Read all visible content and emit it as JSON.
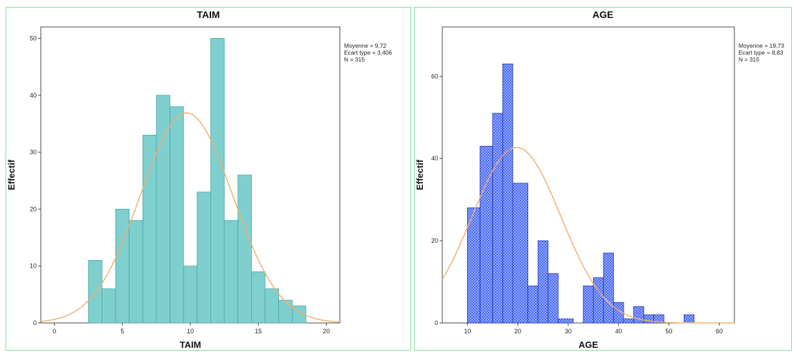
{
  "chart_data": [
    {
      "type": "bar",
      "title": "TAIM",
      "xlabel": "TAIM",
      "ylabel": "Effectif",
      "stats": [
        "Moyenne = 9,72",
        "Ecart type = 3,406",
        "N = 315"
      ],
      "xlim": [
        -1,
        21
      ],
      "ylim": [
        0,
        52
      ],
      "xticks": [
        0,
        5,
        10,
        15,
        20
      ],
      "yticks": [
        0,
        10,
        20,
        30,
        40,
        50
      ],
      "bin_width": 1,
      "bins": [
        {
          "x": 3,
          "y": 11
        },
        {
          "x": 4,
          "y": 6
        },
        {
          "x": 5,
          "y": 20
        },
        {
          "x": 6,
          "y": 18
        },
        {
          "x": 7,
          "y": 33
        },
        {
          "x": 8,
          "y": 40
        },
        {
          "x": 9,
          "y": 38
        },
        {
          "x": 10,
          "y": 10
        },
        {
          "x": 11,
          "y": 23
        },
        {
          "x": 12,
          "y": 50
        },
        {
          "x": 13,
          "y": 18
        },
        {
          "x": 14,
          "y": 26
        },
        {
          "x": 15,
          "y": 9
        },
        {
          "x": 16,
          "y": 6
        },
        {
          "x": 17,
          "y": 4
        },
        {
          "x": 18,
          "y": 3
        }
      ],
      "normal_curve": {
        "mean": 9.72,
        "sd": 3.406,
        "n": 315
      },
      "bar_color": "#7fcfcf",
      "bar_stroke": "#4aa5a5",
      "curve_color": "#f0b070"
    },
    {
      "type": "bar",
      "title": "AGE",
      "xlabel": "AGE",
      "ylabel": "Effectif",
      "stats": [
        "Moyenne = 19,73",
        "Ecart type = 8,83",
        "N = 315"
      ],
      "xlim": [
        5,
        63
      ],
      "ylim": [
        0,
        72
      ],
      "xticks": [
        10,
        20,
        30,
        40,
        50,
        60
      ],
      "yticks": [
        0,
        20,
        40,
        60
      ],
      "bin_width": 3,
      "bins": [
        {
          "x": 11.5,
          "y": 28
        },
        {
          "x": 14.5,
          "y": 43
        },
        {
          "x": 17.5,
          "y": 63
        },
        {
          "x": 20.5,
          "y": 34
        },
        {
          "x": 23.5,
          "y": 20
        },
        {
          "x": 26.5,
          "y": 1
        },
        {
          "x": 29.5,
          "y": 0
        },
        {
          "x": 32.5,
          "y": 9
        },
        {
          "x": 35.5,
          "y": 17
        },
        {
          "x": 38.5,
          "y": 5
        },
        {
          "x": 41.5,
          "y": 4
        },
        {
          "x": 44.5,
          "y": 2
        },
        {
          "x": 47.5,
          "y": 0
        },
        {
          "x": 50.5,
          "y": 0
        },
        {
          "x": 53.5,
          "y": 2
        }
      ],
      "extra_bars": [
        {
          "x0": 10.0,
          "x1": 12.5,
          "y": 28
        },
        {
          "x0": 12.5,
          "y": 43,
          "x1": 15.0
        },
        {
          "x0": 15.0,
          "x1": 17.0,
          "y": 51
        },
        {
          "x0": 17.0,
          "x1": 19.0,
          "y": 63
        },
        {
          "x0": 19.0,
          "x1": 22.0,
          "y": 34
        },
        {
          "x0": 22.0,
          "x1": 24.0,
          "y": 9
        },
        {
          "x0": 24.0,
          "x1": 26.0,
          "y": 20
        },
        {
          "x0": 26.0,
          "x1": 28.0,
          "y": 12
        },
        {
          "x0": 28.0,
          "x1": 31.0,
          "y": 1
        },
        {
          "x0": 33.0,
          "x1": 35.0,
          "y": 9
        },
        {
          "x0": 35.0,
          "x1": 37.0,
          "y": 11
        },
        {
          "x0": 37.0,
          "x1": 39.0,
          "y": 17
        },
        {
          "x0": 39.0,
          "x1": 41.0,
          "y": 5
        },
        {
          "x0": 41.0,
          "x1": 43.0,
          "y": 1
        },
        {
          "x0": 43.0,
          "x1": 45.0,
          "y": 4
        },
        {
          "x0": 45.0,
          "x1": 47.0,
          "y": 2
        },
        {
          "x0": 47.0,
          "x1": 49.0,
          "y": 2
        },
        {
          "x0": 53.0,
          "x1": 55.0,
          "y": 2
        }
      ],
      "normal_curve": {
        "mean": 19.73,
        "sd": 8.83,
        "n": 315
      },
      "bar_color": "#4060f0",
      "bar_stroke": "#2030b0",
      "curve_color": "#f0b070"
    }
  ]
}
